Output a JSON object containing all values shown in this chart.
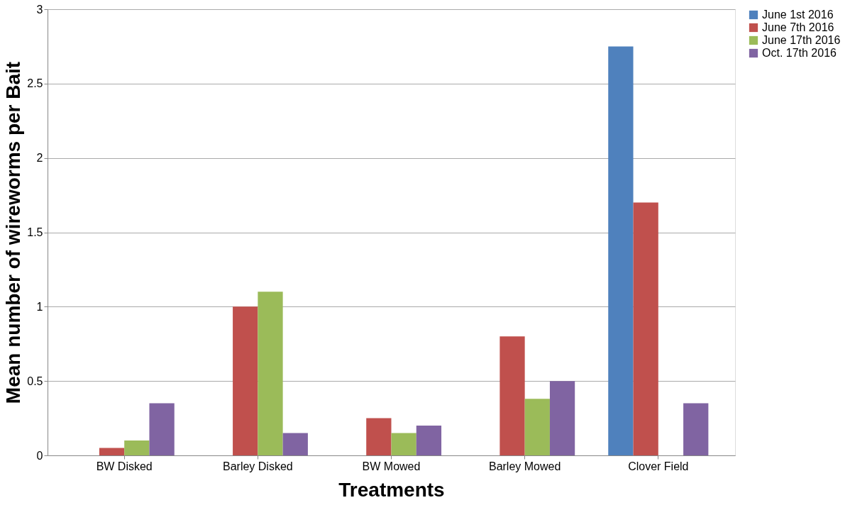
{
  "chart_data": {
    "type": "bar",
    "xlabel": "Treatments",
    "ylabel": "Mean number of wireworms per Bait",
    "categories": [
      "BW Disked",
      "Barley Disked",
      "BW Mowed",
      "Barley Mowed",
      "Clover Field"
    ],
    "series": [
      {
        "name": "June 1st 2016",
        "color": "#4f81bd",
        "values": [
          0,
          0,
          0,
          0,
          2.75
        ]
      },
      {
        "name": "June 7th 2016",
        "color": "#c0504d",
        "values": [
          0.05,
          1.0,
          0.25,
          0.8,
          1.7
        ]
      },
      {
        "name": "June 17th 2016",
        "color": "#9bbb59",
        "values": [
          0.1,
          1.1,
          0.15,
          0.38,
          0
        ]
      },
      {
        "name": "Oct. 17th 2016",
        "color": "#8064a2",
        "values": [
          0.35,
          0.15,
          0.2,
          0.5,
          0.35
        ]
      }
    ],
    "ylim": [
      0,
      3
    ],
    "yticks": [
      0,
      0.5,
      1,
      1.5,
      2,
      2.5,
      3
    ],
    "grid": "y",
    "legend": "right"
  }
}
